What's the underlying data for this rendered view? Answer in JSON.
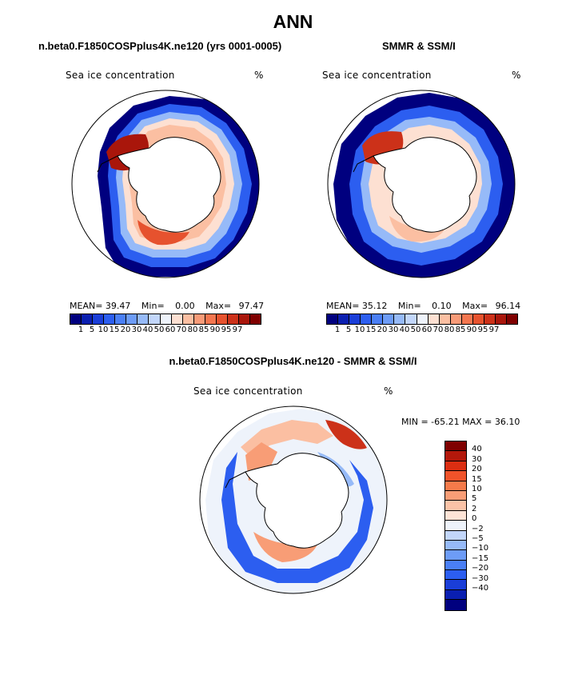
{
  "title": "ANN",
  "panel1": {
    "subtitle": "n.beta0.F1850COSPplus4K.ne120 (yrs 0001-0005)",
    "label": "Sea ice concentration",
    "units": "%",
    "mean_label": "MEAN=",
    "mean": "39.47",
    "min_label": "Min=",
    "min": "0.00",
    "max_label": "Max=",
    "max": "97.47"
  },
  "panel2": {
    "subtitle": "SMMR & SSM/I",
    "label": "Sea ice concentration",
    "units": "%",
    "mean_label": "MEAN=",
    "mean": "35.12",
    "min_label": "Min=",
    "min": "0.10",
    "max_label": "Max=",
    "max": "96.14"
  },
  "panel3": {
    "subtitle": "n.beta0.F1850COSPplus4K.ne120 - SMMR & SSM/I",
    "label": "Sea ice concentration",
    "units": "%",
    "minmax_text": "MIN = -65.21 MAX =  36.10"
  },
  "colorbar_abs": {
    "ticks": [
      "1",
      "5",
      "10",
      "15",
      "20",
      "30",
      "40",
      "50",
      "60",
      "70",
      "80",
      "85",
      "90",
      "95",
      "97"
    ],
    "colors": [
      "#00007f",
      "#0a1fb0",
      "#1a3ed8",
      "#2c5ef0",
      "#4a7ff5",
      "#6d9cf7",
      "#96baf8",
      "#c2d6fa",
      "#eef3fb",
      "#fde0d2",
      "#fbbfa2",
      "#f89b78",
      "#f3764f",
      "#e6522e",
      "#cc3119",
      "#a9160b",
      "#7f0000"
    ]
  },
  "colorbar_diff": {
    "ticks": [
      "40",
      "30",
      "20",
      "15",
      "10",
      "5",
      "2",
      "0",
      "−2",
      "−5",
      "−10",
      "−15",
      "−20",
      "−30",
      "−40"
    ],
    "colors": [
      "#7f0000",
      "#b3180b",
      "#db2e12",
      "#f0532a",
      "#f57a4a",
      "#f89d76",
      "#fbc3a7",
      "#fde3d6",
      "#eef3fb",
      "#c2d6fa",
      "#96baf8",
      "#6d9cf7",
      "#4a7ff5",
      "#2c5ef0",
      "#1a3ed8",
      "#0a1fb0",
      "#00007f"
    ]
  }
}
